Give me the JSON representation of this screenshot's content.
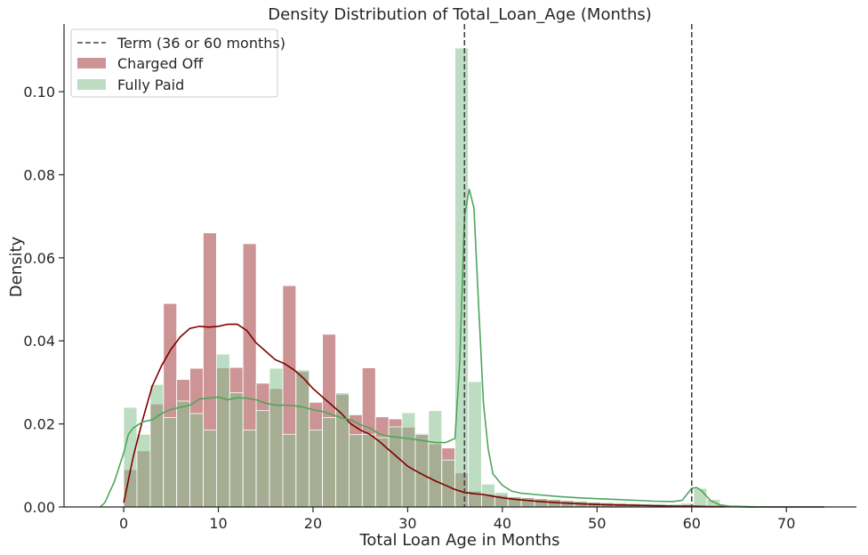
{
  "chart_data": {
    "type": "bar",
    "title": "Density Distribution of Total_Loan_Age (Months)",
    "xlabel": "Total Loan Age in Months",
    "ylabel": "Density",
    "xlim": [
      -6.3,
      77.4
    ],
    "ylim": [
      0,
      0.1163
    ],
    "xticks": [
      0,
      10,
      20,
      30,
      40,
      50,
      60,
      70
    ],
    "yticks": [
      0.0,
      0.02,
      0.04,
      0.06,
      0.08,
      0.1
    ],
    "ytick_labels": [
      "0.00",
      "0.02",
      "0.04",
      "0.06",
      "0.08",
      "0.10"
    ],
    "grid": false,
    "legend_position": "top-left",
    "bin_width": 1.4,
    "legend": {
      "term_line": "Term (36 or 60 months)",
      "charged_off": "Charged Off",
      "fully_paid": "Fully Paid"
    },
    "term_lines_x": [
      36,
      60
    ],
    "series": [
      {
        "name": "Charged Off",
        "color": "#a33d3d",
        "kde_color": "#7f0000",
        "bins_left": [
          0,
          1.4,
          2.8,
          4.2,
          5.6,
          7.0,
          8.4,
          9.8,
          11.2,
          12.6,
          14.0,
          15.4,
          16.8,
          18.2,
          19.6,
          21.0,
          22.4,
          23.8,
          25.2,
          26.6,
          28.0,
          29.4,
          30.8,
          32.2,
          33.6,
          35.0,
          36.4,
          37.8,
          39.2,
          40.6,
          42.0,
          43.4,
          44.8,
          46.2,
          47.6,
          49.0,
          50.4,
          51.8,
          53.2
        ],
        "hist_values": [
          0.009,
          0.0135,
          0.0248,
          0.049,
          0.0307,
          0.0334,
          0.066,
          0.0335,
          0.0336,
          0.0634,
          0.0298,
          0.0285,
          0.0533,
          0.0326,
          0.0252,
          0.0416,
          0.0271,
          0.0222,
          0.0335,
          0.0217,
          0.0212,
          0.0192,
          0.0177,
          0.0152,
          0.0142,
          0.0082,
          0.0038,
          0.0031,
          0.0028,
          0.0024,
          0.0022,
          0.002,
          0.0018,
          0.0015,
          0.0013,
          0.0011,
          0.0009,
          0.0008,
          0.0006
        ],
        "kde_x": [
          0,
          1,
          2,
          3,
          4,
          5,
          6,
          7,
          8,
          9,
          10,
          11,
          12,
          13,
          14,
          15,
          16,
          17,
          18,
          19,
          20,
          21,
          22,
          23,
          24,
          25,
          26,
          27,
          28,
          29,
          30,
          31,
          32,
          33,
          34,
          35,
          36,
          37,
          38,
          39,
          40,
          41,
          42,
          43,
          44,
          46,
          48,
          50,
          52,
          54,
          56,
          58,
          60,
          62,
          64,
          66,
          68,
          70,
          72,
          74
        ],
        "kde_y": [
          0.001,
          0.012,
          0.021,
          0.029,
          0.034,
          0.038,
          0.041,
          0.043,
          0.0435,
          0.0433,
          0.0435,
          0.044,
          0.044,
          0.0425,
          0.0395,
          0.0375,
          0.0355,
          0.0345,
          0.033,
          0.031,
          0.0285,
          0.0265,
          0.0245,
          0.0225,
          0.02,
          0.0185,
          0.0175,
          0.0158,
          0.0138,
          0.0118,
          0.0098,
          0.0085,
          0.0073,
          0.0062,
          0.0052,
          0.0042,
          0.0035,
          0.0032,
          0.003,
          0.0026,
          0.0022,
          0.0019,
          0.0017,
          0.0015,
          0.0013,
          0.001,
          0.0008,
          0.0006,
          0.0005,
          0.0004,
          0.0003,
          0.0002,
          0.0002,
          0.0001,
          0.0001,
          0.0,
          0.0,
          0.0,
          0.0,
          0.0
        ]
      },
      {
        "name": "Fully Paid",
        "color": "#86c18f",
        "kde_color": "#4da65b",
        "bins_left": [
          0,
          1.4,
          2.8,
          4.2,
          5.6,
          7.0,
          8.4,
          9.8,
          11.2,
          12.6,
          14.0,
          15.4,
          16.8,
          18.2,
          19.6,
          21.0,
          22.4,
          23.8,
          25.2,
          26.6,
          28.0,
          29.4,
          30.8,
          32.2,
          33.6,
          35.0,
          36.4,
          37.8,
          39.2,
          40.6,
          42.0,
          43.4,
          44.8,
          46.2,
          47.6,
          49.0,
          50.4,
          51.8,
          53.2,
          54.6,
          56.0,
          57.4,
          58.8,
          60.2,
          61.6
        ],
        "hist_values": [
          0.024,
          0.0175,
          0.0295,
          0.0215,
          0.0255,
          0.0225,
          0.0185,
          0.0368,
          0.0275,
          0.0185,
          0.0232,
          0.0334,
          0.0175,
          0.033,
          0.0185,
          0.0215,
          0.0275,
          0.0174,
          0.0175,
          0.0167,
          0.0193,
          0.0227,
          0.0175,
          0.0232,
          0.0113,
          0.1105,
          0.0302,
          0.0055,
          0.0035,
          0.0025,
          0.0023,
          0.002,
          0.0018,
          0.0016,
          0.0014,
          0.0012,
          0.0011,
          0.001,
          0.0009,
          0.0008,
          0.0008,
          0.0007,
          0.0009,
          0.0045,
          0.0018
        ],
        "kde_x": [
          -2.5,
          -2,
          -1,
          0,
          0.5,
          1,
          2,
          3,
          4,
          5,
          6,
          7,
          8,
          9,
          10,
          11,
          12,
          13,
          14,
          15,
          16,
          17,
          18,
          19,
          20,
          21,
          22,
          23,
          24,
          25,
          26,
          27,
          28,
          29,
          30,
          31,
          32,
          33,
          34,
          35,
          35.5,
          36,
          36.5,
          37,
          37.5,
          38,
          38.5,
          39,
          40,
          41,
          42,
          44,
          46,
          48,
          50,
          52,
          54,
          56,
          58,
          59,
          60,
          60.5,
          61,
          62,
          63,
          64,
          66,
          68,
          70,
          72,
          74
        ],
        "kde_y": [
          0.0,
          0.001,
          0.006,
          0.013,
          0.0175,
          0.019,
          0.0205,
          0.021,
          0.0225,
          0.0235,
          0.024,
          0.0245,
          0.026,
          0.0262,
          0.0265,
          0.0258,
          0.0263,
          0.0262,
          0.0258,
          0.025,
          0.0245,
          0.0245,
          0.0244,
          0.024,
          0.0234,
          0.023,
          0.0222,
          0.0215,
          0.021,
          0.0198,
          0.019,
          0.0176,
          0.017,
          0.0168,
          0.0165,
          0.0162,
          0.0158,
          0.0155,
          0.0155,
          0.0165,
          0.035,
          0.07,
          0.0766,
          0.072,
          0.048,
          0.025,
          0.014,
          0.008,
          0.0052,
          0.0038,
          0.0033,
          0.0029,
          0.0025,
          0.0022,
          0.002,
          0.0018,
          0.0016,
          0.0014,
          0.0013,
          0.0016,
          0.0045,
          0.0047,
          0.004,
          0.0015,
          0.0005,
          0.0002,
          0.0001,
          0.0,
          0.0,
          0.0,
          0.0
        ]
      }
    ]
  }
}
